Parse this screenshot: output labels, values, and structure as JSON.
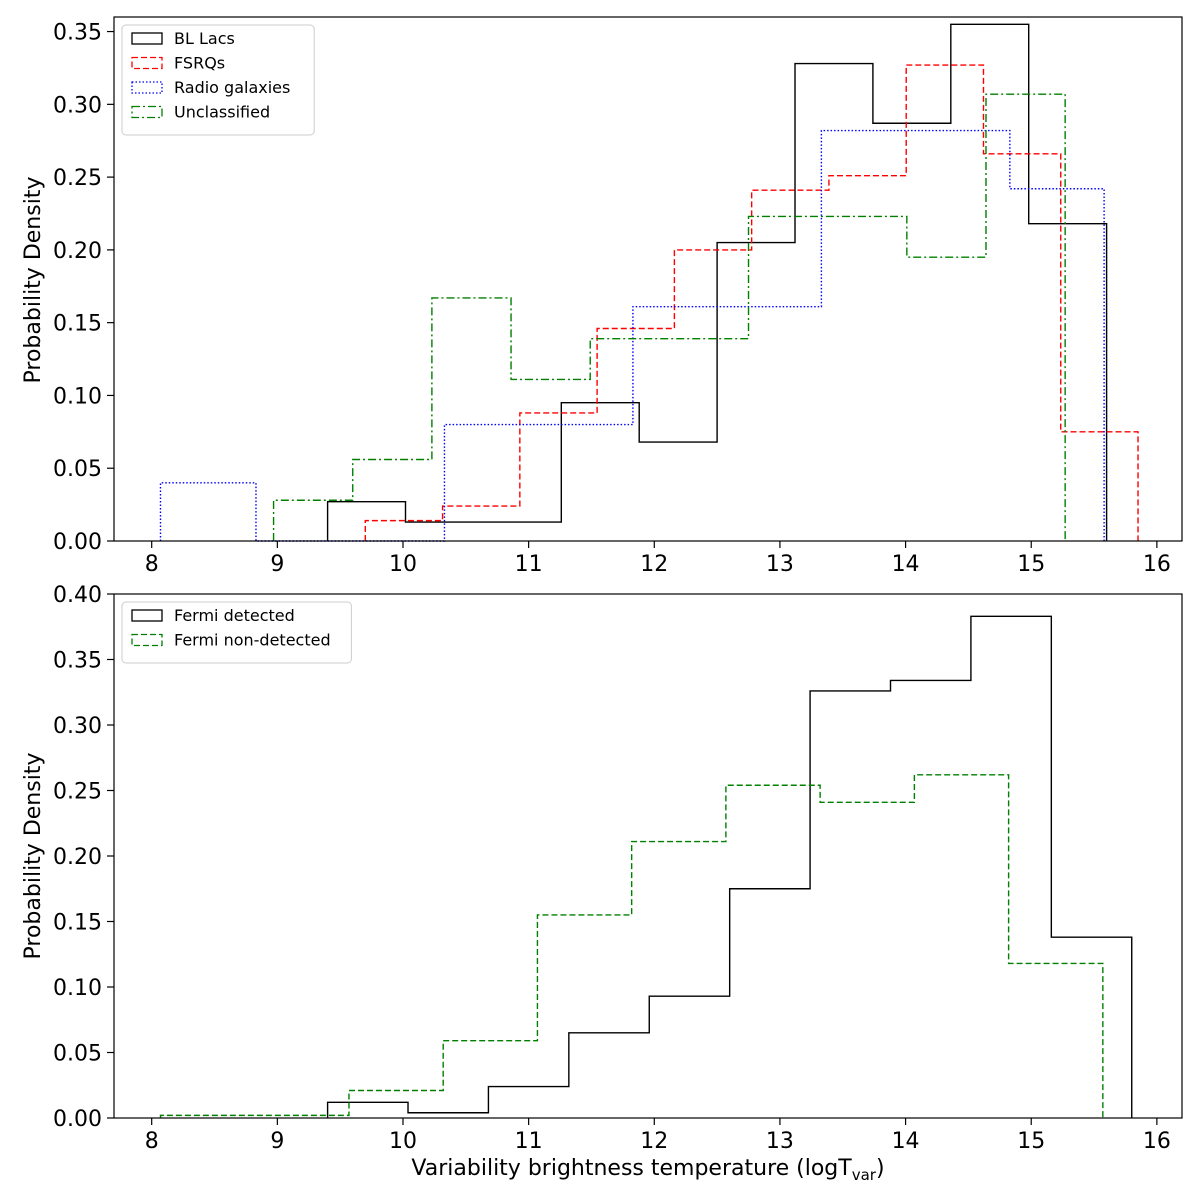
{
  "chart_data": [
    {
      "type": "histogram-step",
      "panel": "top",
      "title": "",
      "xlabel": "",
      "ylabel": "Probability Density",
      "xlim": [
        7.7,
        16.2
      ],
      "ylim": [
        0,
        0.36
      ],
      "xticks": [
        8,
        9,
        10,
        11,
        12,
        13,
        14,
        15,
        16
      ],
      "yticks": [
        0.0,
        0.05,
        0.1,
        0.15,
        0.2,
        0.25,
        0.3,
        0.35
      ],
      "ytick_labels": [
        "0.00",
        "0.05",
        "0.10",
        "0.15",
        "0.20",
        "0.25",
        "0.30",
        "0.35"
      ],
      "legend_position": "top-left",
      "series": [
        {
          "name": "BL Lacs",
          "color": "#000000",
          "style": "solid",
          "edges": [
            9.4,
            10.02,
            10.64,
            11.26,
            11.88,
            12.5,
            13.12,
            13.74,
            14.36,
            14.98,
            15.6
          ],
          "values": [
            0.027,
            0.013,
            0.013,
            0.095,
            0.068,
            0.205,
            0.328,
            0.287,
            0.355,
            0.218
          ]
        },
        {
          "name": "FSRQs",
          "color": "#ff0000",
          "style": "dashed",
          "edges": [
            9.7,
            10.315,
            10.93,
            11.545,
            12.16,
            12.775,
            13.39,
            14.005,
            14.62,
            15.235,
            15.85
          ],
          "values": [
            0.014,
            0.024,
            0.088,
            0.146,
            0.2,
            0.241,
            0.251,
            0.327,
            0.266,
            0.075
          ]
        },
        {
          "name": "Radio galaxies",
          "color": "#0000ff",
          "style": "dotted",
          "edges": [
            8.07,
            8.83,
            9.58,
            10.33,
            11.08,
            11.83,
            12.58,
            13.33,
            14.08,
            14.83,
            15.58
          ],
          "values": [
            0.04,
            0.0,
            0.0,
            0.08,
            0.08,
            0.161,
            0.161,
            0.282,
            0.282,
            0.242
          ]
        },
        {
          "name": "Unclassified",
          "color": "#008000",
          "style": "dashdot",
          "edges": [
            8.97,
            9.6,
            10.23,
            10.86,
            11.49,
            12.12,
            12.75,
            13.38,
            14.01,
            14.64,
            15.27
          ],
          "values": [
            0.028,
            0.056,
            0.167,
            0.111,
            0.139,
            0.139,
            0.223,
            0.223,
            0.195,
            0.307
          ]
        }
      ]
    },
    {
      "type": "histogram-step",
      "panel": "bottom",
      "title": "",
      "xlabel": "Variability brightness temperature (logT",
      "xlabel_sub": "var",
      "xlabel_end": ")",
      "ylabel": "Probability Density",
      "xlim": [
        7.7,
        16.2
      ],
      "ylim": [
        0,
        0.4
      ],
      "xticks": [
        8,
        9,
        10,
        11,
        12,
        13,
        14,
        15,
        16
      ],
      "yticks": [
        0.0,
        0.05,
        0.1,
        0.15,
        0.2,
        0.25,
        0.3,
        0.35,
        0.4
      ],
      "ytick_labels": [
        "0.00",
        "0.05",
        "0.10",
        "0.15",
        "0.20",
        "0.25",
        "0.30",
        "0.35",
        "0.40"
      ],
      "legend_position": "top-left",
      "series": [
        {
          "name": "Fermi detected",
          "color": "#000000",
          "style": "solid",
          "edges": [
            9.4,
            10.04,
            10.68,
            11.32,
            11.96,
            12.6,
            13.24,
            13.88,
            14.52,
            15.16,
            15.8
          ],
          "values": [
            0.012,
            0.004,
            0.024,
            0.065,
            0.093,
            0.175,
            0.326,
            0.334,
            0.383,
            0.138
          ]
        },
        {
          "name": "Fermi non-detected",
          "color": "#008000",
          "style": "dashed",
          "edges": [
            8.07,
            8.82,
            9.57,
            10.32,
            11.07,
            11.82,
            12.57,
            13.32,
            14.07,
            14.82,
            15.57
          ],
          "values": [
            0.002,
            0.002,
            0.021,
            0.059,
            0.155,
            0.211,
            0.254,
            0.241,
            0.262,
            0.118
          ]
        }
      ]
    }
  ]
}
